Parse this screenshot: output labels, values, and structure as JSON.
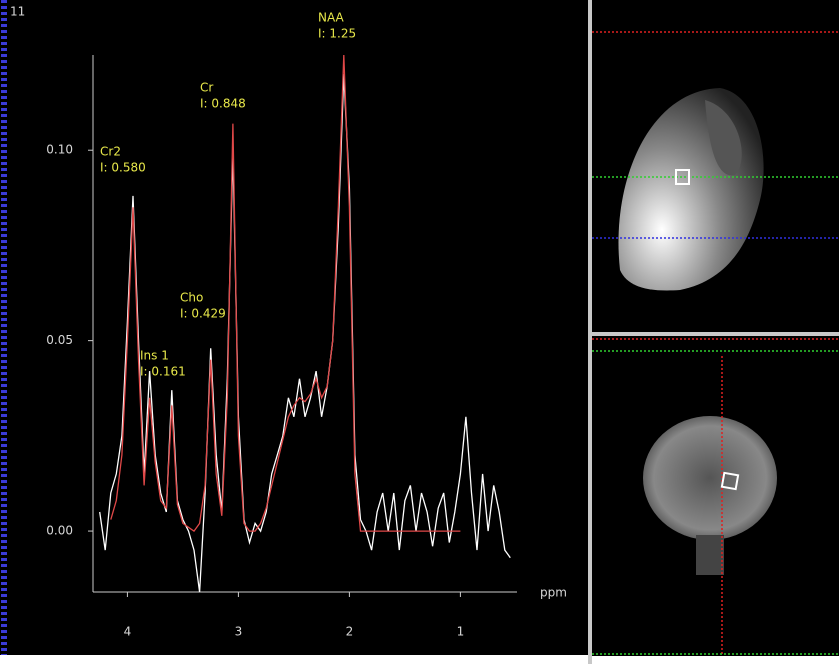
{
  "window_label": "11",
  "chart_data": {
    "type": "line",
    "x_label": "ppm",
    "x": [
      4.25,
      4.2,
      4.15,
      4.1,
      4.05,
      4.0,
      3.95,
      3.9,
      3.85,
      3.8,
      3.75,
      3.7,
      3.65,
      3.6,
      3.55,
      3.5,
      3.45,
      3.4,
      3.35,
      3.3,
      3.25,
      3.2,
      3.15,
      3.1,
      3.05,
      3.0,
      2.95,
      2.9,
      2.85,
      2.8,
      2.75,
      2.7,
      2.65,
      2.6,
      2.55,
      2.5,
      2.45,
      2.4,
      2.35,
      2.3,
      2.25,
      2.2,
      2.15,
      2.1,
      2.05,
      2.0,
      1.95,
      1.9,
      1.85,
      1.8,
      1.75,
      1.7,
      1.65,
      1.6,
      1.55,
      1.5,
      1.45,
      1.4,
      1.35,
      1.3,
      1.25,
      1.2,
      1.15,
      1.1,
      1.05,
      1.0,
      0.95,
      0.9,
      0.85,
      0.8,
      0.75,
      0.7,
      0.65,
      0.6,
      0.55
    ],
    "series": [
      {
        "color": "#ffffff",
        "values": [
          0.005,
          -0.005,
          0.01,
          0.015,
          0.025,
          0.055,
          0.088,
          0.05,
          0.015,
          0.042,
          0.02,
          0.01,
          0.005,
          0.037,
          0.008,
          0.003,
          0.0,
          -0.005,
          -0.016,
          0.01,
          0.048,
          0.02,
          0.005,
          0.04,
          0.1,
          0.03,
          0.003,
          -0.003,
          0.002,
          0.0,
          0.005,
          0.015,
          0.02,
          0.025,
          0.035,
          0.03,
          0.04,
          0.03,
          0.035,
          0.042,
          0.03,
          0.038,
          0.05,
          0.08,
          0.12,
          0.09,
          0.02,
          0.003,
          0.0,
          -0.005,
          0.005,
          0.01,
          0.0,
          0.01,
          -0.005,
          0.008,
          0.012,
          0.0,
          0.01,
          0.005,
          -0.004,
          0.006,
          0.01,
          -0.003,
          0.005,
          0.015,
          0.03,
          0.01,
          -0.005,
          0.015,
          0.0,
          0.012,
          0.005,
          -0.005,
          -0.007
        ]
      },
      {
        "color": "#e04848",
        "values": [
          null,
          null,
          0.003,
          0.008,
          0.02,
          0.05,
          0.085,
          0.045,
          0.012,
          0.035,
          0.018,
          0.008,
          0.006,
          0.033,
          0.007,
          0.002,
          0.001,
          0.0,
          0.002,
          0.012,
          0.045,
          0.015,
          0.004,
          0.035,
          0.107,
          0.025,
          0.002,
          0.0,
          0.0,
          0.002,
          0.006,
          0.012,
          0.018,
          0.024,
          0.03,
          0.033,
          0.035,
          0.034,
          0.036,
          0.04,
          0.035,
          0.038,
          0.05,
          0.085,
          0.125,
          0.085,
          0.015,
          0.0,
          0.0,
          0.0,
          0.0,
          0.0,
          0.0,
          0.0,
          0.0,
          0.0,
          0.0,
          0.0,
          0.0,
          0.0,
          0.0,
          0.0,
          0.0,
          0.0,
          0.0,
          0.0,
          null,
          null,
          null,
          null,
          null,
          null,
          null,
          null,
          null
        ]
      }
    ],
    "xlim": [
      4.31,
      0.49
    ],
    "xticks": [
      4,
      3,
      2,
      1
    ],
    "ylim": [
      -0.016,
      0.125
    ],
    "yticks": [
      {
        "value": 0,
        "label": "0.00"
      },
      {
        "value": 0.05,
        "label": "0.05"
      },
      {
        "value": 0.1,
        "label": "0.10"
      }
    ],
    "annotation_color": "#e8e84a",
    "annotations": [
      [
        "Cr2",
        "I: 0.580"
      ],
      [
        "Ins 1",
        "I: 0.161"
      ],
      [
        "Cho",
        "I: 0.429"
      ],
      [
        "Cr",
        "I: 0.848"
      ],
      [
        "NAA",
        "I: 1.25"
      ]
    ]
  }
}
